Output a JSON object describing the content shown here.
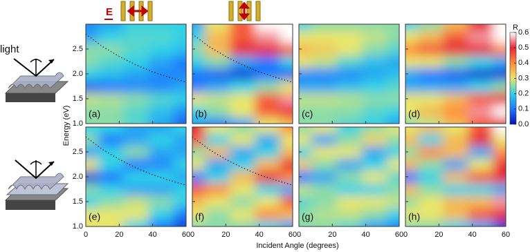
{
  "chart_data": {
    "type": "heatmap-grid",
    "xlabel": "Incident Angle (degrees)",
    "ylabel": "Energy (eV)",
    "xlim": [
      0,
      60
    ],
    "ylim": [
      1,
      3
    ],
    "xticks": [
      0,
      20,
      40,
      60
    ],
    "yticks": [
      {
        "value": 1,
        "label": "1.0"
      },
      1.5,
      {
        "value": 2,
        "label": "2.0"
      },
      2.5
    ],
    "colorbar": {
      "title": "R",
      "lim": [
        0,
        0.6
      ],
      "ticks": [
        {
          "value": 0,
          "label": "0.0"
        },
        0.1,
        0.2,
        0.3,
        0.4,
        0.5,
        0.6
      ],
      "colors": [
        "#0a10b0",
        "#1e78ff",
        "#30d2e6",
        "#e8e66a",
        "#ff8c3a",
        "#e8283a",
        "#ffffff"
      ]
    },
    "panels": [
      {
        "label": "(a)",
        "x": [
          0,
          15,
          30,
          45,
          60
        ],
        "y": [
          1,
          1.25,
          1.5,
          1.75,
          2,
          2.25,
          2.5,
          2.75,
          3
        ],
        "values": [
          [
            0.25,
            0.25,
            0.22,
            0.15,
            0.08
          ],
          [
            0.25,
            0.25,
            0.22,
            0.18,
            0.12
          ],
          [
            0.28,
            0.27,
            0.25,
            0.22,
            0.2
          ],
          [
            0.08,
            0.1,
            0.12,
            0.12,
            0.15
          ],
          [
            0.2,
            0.18,
            0.15,
            0.12,
            0.12
          ],
          [
            0.25,
            0.22,
            0.2,
            0.15,
            0.1
          ],
          [
            0.25,
            0.25,
            0.22,
            0.2,
            0.18
          ],
          [
            0.15,
            0.2,
            0.22,
            0.22,
            0.2
          ],
          [
            0.12,
            0.15,
            0.2,
            0.2,
            0.2
          ]
        ],
        "overlay": {
          "x": [
            0,
            10,
            20,
            30,
            40,
            50,
            60
          ],
          "y": [
            2.8,
            2.55,
            2.35,
            2.18,
            2.04,
            1.93,
            1.83
          ]
        }
      },
      {
        "label": "(b)",
        "x": [
          0,
          15,
          30,
          45,
          60
        ],
        "y": [
          1,
          1.25,
          1.5,
          1.75,
          2,
          2.25,
          2.5,
          2.75,
          3
        ],
        "values": [
          [
            0.15,
            0.12,
            0.15,
            0.3,
            0.35
          ],
          [
            0.2,
            0.25,
            0.3,
            0.45,
            0.5
          ],
          [
            0.3,
            0.28,
            0.3,
            0.45,
            0.55
          ],
          [
            0.1,
            0.15,
            0.2,
            0.25,
            0.3
          ],
          [
            0.1,
            0.08,
            0.05,
            0.1,
            0.08
          ],
          [
            0.2,
            0.25,
            0.15,
            0.1,
            0.2
          ],
          [
            0.25,
            0.35,
            0.5,
            0.5,
            0.45
          ],
          [
            0.2,
            0.35,
            0.45,
            0.55,
            0.6
          ],
          [
            0.15,
            0.3,
            0.45,
            0.6,
            0.6
          ]
        ],
        "overlay": {
          "x": [
            0,
            10,
            20,
            30,
            40,
            50,
            60
          ],
          "y": [
            2.8,
            2.55,
            2.35,
            2.18,
            2.04,
            1.93,
            1.83
          ]
        }
      },
      {
        "label": "(c)",
        "x": [
          0,
          15,
          30,
          45,
          60
        ],
        "y": [
          1,
          1.25,
          1.5,
          1.75,
          2,
          2.25,
          2.5,
          2.75,
          3
        ],
        "values": [
          [
            0.25,
            0.25,
            0.22,
            0.2,
            0.15
          ],
          [
            0.25,
            0.25,
            0.25,
            0.22,
            0.2
          ],
          [
            0.28,
            0.28,
            0.27,
            0.25,
            0.25
          ],
          [
            0.15,
            0.15,
            0.18,
            0.2,
            0.22
          ],
          [
            0.12,
            0.12,
            0.12,
            0.15,
            0.18
          ],
          [
            0.3,
            0.28,
            0.22,
            0.18,
            0.15
          ],
          [
            0.35,
            0.33,
            0.3,
            0.25,
            0.22
          ],
          [
            0.3,
            0.3,
            0.3,
            0.28,
            0.25
          ],
          [
            0.2,
            0.25,
            0.25,
            0.25,
            0.25
          ]
        ]
      },
      {
        "label": "(d)",
        "x": [
          0,
          15,
          30,
          45,
          60
        ],
        "y": [
          1,
          1.25,
          1.5,
          1.75,
          2,
          2.25,
          2.5,
          2.75,
          3
        ],
        "values": [
          [
            0.25,
            0.28,
            0.35,
            0.45,
            0.5
          ],
          [
            0.3,
            0.35,
            0.4,
            0.55,
            0.6
          ],
          [
            0.3,
            0.3,
            0.35,
            0.45,
            0.5
          ],
          [
            0.15,
            0.15,
            0.15,
            0.2,
            0.25
          ],
          [
            0.15,
            0.1,
            0.08,
            0.05,
            0.05
          ],
          [
            0.3,
            0.3,
            0.25,
            0.2,
            0.15
          ],
          [
            0.4,
            0.45,
            0.5,
            0.5,
            0.4
          ],
          [
            0.3,
            0.35,
            0.45,
            0.55,
            0.6
          ],
          [
            0.2,
            0.25,
            0.35,
            0.5,
            0.6
          ]
        ]
      },
      {
        "label": "(e)",
        "x": [
          0,
          15,
          30,
          45,
          60
        ],
        "y": [
          1,
          1.25,
          1.5,
          1.75,
          2,
          2.25,
          2.5,
          2.75,
          3
        ],
        "values": [
          [
            0.3,
            0.3,
            0.2,
            0.1,
            0.05
          ],
          [
            0.3,
            0.3,
            0.3,
            0.2,
            0.1
          ],
          [
            0.2,
            0.25,
            0.28,
            0.25,
            0.2
          ],
          [
            0.25,
            0.2,
            0.15,
            0.15,
            0.2
          ],
          [
            0.05,
            0.1,
            0.2,
            0.2,
            0.15
          ],
          [
            0.3,
            0.2,
            0.1,
            0.12,
            0.2
          ],
          [
            0.15,
            0.2,
            0.25,
            0.15,
            0.15
          ],
          [
            0.25,
            0.1,
            0.15,
            0.2,
            0.15
          ],
          [
            0.2,
            0.2,
            0.15,
            0.15,
            0.2
          ]
        ],
        "overlay": {
          "x": [
            0,
            10,
            20,
            30,
            40,
            50,
            60
          ],
          "y": [
            2.8,
            2.55,
            2.35,
            2.18,
            2.04,
            1.93,
            1.83
          ]
        }
      },
      {
        "label": "(f)",
        "x": [
          0,
          15,
          30,
          45,
          60
        ],
        "y": [
          1,
          1.25,
          1.5,
          1.75,
          2,
          2.25,
          2.5,
          2.75,
          3
        ],
        "values": [
          [
            0.25,
            0.25,
            0.25,
            0.2,
            0.15
          ],
          [
            0.3,
            0.25,
            0.3,
            0.4,
            0.35
          ],
          [
            0.35,
            0.3,
            0.25,
            0.3,
            0.45
          ],
          [
            0.45,
            0.4,
            0.3,
            0.2,
            0.15
          ],
          [
            0.1,
            0.2,
            0.35,
            0.5,
            0.4
          ],
          [
            0.3,
            0.15,
            0.2,
            0.35,
            0.5
          ],
          [
            0.25,
            0.35,
            0.15,
            0.2,
            0.35
          ],
          [
            0.45,
            0.2,
            0.3,
            0.15,
            0.3
          ],
          [
            0.5,
            0.3,
            0.25,
            0.3,
            0.4
          ]
        ],
        "overlay": {
          "x": [
            0,
            10,
            20,
            30,
            40,
            50,
            60
          ],
          "y": [
            2.8,
            2.55,
            2.35,
            2.18,
            2.04,
            1.93,
            1.83
          ]
        }
      },
      {
        "label": "(g)",
        "x": [
          0,
          15,
          30,
          45,
          60
        ],
        "y": [
          1,
          1.25,
          1.5,
          1.75,
          2,
          2.25,
          2.5,
          2.75,
          3
        ],
        "values": [
          [
            0.25,
            0.25,
            0.22,
            0.15,
            0.12
          ],
          [
            0.25,
            0.27,
            0.28,
            0.25,
            0.2
          ],
          [
            0.22,
            0.25,
            0.3,
            0.3,
            0.28
          ],
          [
            0.28,
            0.25,
            0.2,
            0.2,
            0.25
          ],
          [
            0.1,
            0.15,
            0.25,
            0.3,
            0.22
          ],
          [
            0.33,
            0.25,
            0.15,
            0.2,
            0.3
          ],
          [
            0.2,
            0.3,
            0.3,
            0.15,
            0.2
          ],
          [
            0.3,
            0.15,
            0.25,
            0.32,
            0.25
          ],
          [
            0.25,
            0.3,
            0.2,
            0.25,
            0.3
          ]
        ]
      },
      {
        "label": "(h)",
        "x": [
          0,
          15,
          30,
          45,
          60
        ],
        "y": [
          1,
          1.25,
          1.5,
          1.75,
          2,
          2.25,
          2.5,
          2.75,
          3
        ],
        "values": [
          [
            0.25,
            0.25,
            0.2,
            0.15,
            0.05
          ],
          [
            0.3,
            0.3,
            0.35,
            0.45,
            0.5
          ],
          [
            0.25,
            0.3,
            0.35,
            0.35,
            0.55
          ],
          [
            0.35,
            0.25,
            0.2,
            0.2,
            0.15
          ],
          [
            0.1,
            0.2,
            0.35,
            0.45,
            0.5
          ],
          [
            0.35,
            0.25,
            0.15,
            0.3,
            0.5
          ],
          [
            0.25,
            0.4,
            0.35,
            0.15,
            0.4
          ],
          [
            0.35,
            0.2,
            0.35,
            0.5,
            0.3
          ],
          [
            0.3,
            0.35,
            0.3,
            0.45,
            0.6
          ]
        ]
      }
    ]
  },
  "illustration": {
    "field": "E",
    "light": "light"
  }
}
